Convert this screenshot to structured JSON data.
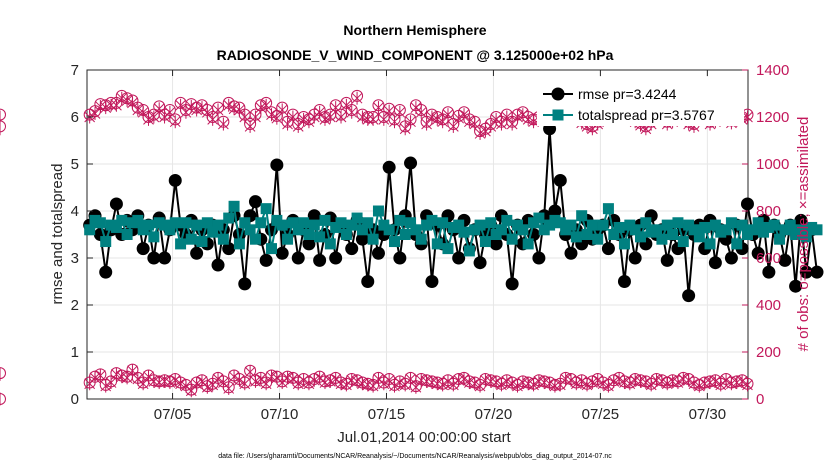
{
  "chart_data": {
    "type": "line",
    "title": "Northern Hemisphere",
    "subtitle": "RADIOSONDE_V_WIND_COMPONENT @ 3.125000e+02 hPa",
    "xlabel": "Jul.01,2014 00:00:00 start",
    "ylabel": "rmse and totalspread",
    "y2label": "# of obs: o=possible; ×=assimilated",
    "footnote": "data file: /Users/gharamti/Documents/NCAR/Reanalysis/~/Documents/NCAR/Reanalysis/webpub/obs_diag_output_2014-07.nc",
    "xlim": [
      1.0,
      31.9
    ],
    "ylim": [
      0,
      7
    ],
    "y2lim": [
      0,
      1400
    ],
    "xticks": [
      {
        "value": 5,
        "label": "07/05"
      },
      {
        "value": 10,
        "label": "07/10"
      },
      {
        "value": 15,
        "label": "07/15"
      },
      {
        "value": 20,
        "label": "07/20"
      },
      {
        "value": 25,
        "label": "07/25"
      },
      {
        "value": 30,
        "label": "07/30"
      }
    ],
    "yticks": [
      "0",
      "1",
      "2",
      "3",
      "4",
      "5",
      "6",
      "7"
    ],
    "y2ticks": [
      "0",
      "200",
      "400",
      "600",
      "800",
      "1000",
      "1200",
      "1400"
    ],
    "grid": true,
    "legend": [
      {
        "label": "rmse pr=3.4244",
        "color": "#000000",
        "marker": "circle"
      },
      {
        "label": "totalspread pr=3.5767",
        "color": "#008080",
        "marker": "square"
      }
    ],
    "colors": {
      "rmse": "#000000",
      "spread": "#008080",
      "obs": "#c2185b"
    },
    "t0": 1.125,
    "dt": 0.25,
    "rmse": [
      3.7,
      3.9,
      3.5,
      2.7,
      3.6,
      4.15,
      3.5,
      3.8,
      3.6,
      3.9,
      3.2,
      3.7,
      3.0,
      3.85,
      3.0,
      3.6,
      4.65,
      3.7,
      3.5,
      3.8,
      3.1,
      3.6,
      3.3,
      3.7,
      2.85,
      3.6,
      3.2,
      3.9,
      3.5,
      2.45,
      3.9,
      4.2,
      3.4,
      2.95,
      3.6,
      4.98,
      3.1,
      3.5,
      3.8,
      3.0,
      3.6,
      3.3,
      3.9,
      2.95,
      3.5,
      3.85,
      3.0,
      3.7,
      3.5,
      3.2,
      3.8,
      3.4,
      2.5,
      3.6,
      3.1,
      3.5,
      4.93,
      3.6,
      3.0,
      3.9,
      5.02,
      3.5,
      3.3,
      3.9,
      2.5,
      3.7,
      3.3,
      3.9,
      3.6,
      3.0,
      3.8,
      3.2,
      3.6,
      2.9,
      3.5,
      3.7,
      3.3,
      3.9,
      3.5,
      2.45,
      3.7,
      3.3,
      3.8,
      3.5,
      3.0,
      3.9,
      5.75,
      4.0,
      4.65,
      3.5,
      3.1,
      3.6,
      3.3,
      3.8,
      3.4,
      3.6,
      3.7,
      3.2,
      3.8,
      3.5,
      2.5,
      3.6,
      3.0,
      3.7,
      3.3,
      3.9,
      3.5,
      3.6,
      2.95,
      3.5,
      3.2,
      3.6,
      2.2,
      3.5,
      3.7,
      3.2,
      3.8,
      2.9,
      3.6,
      3.4,
      3.0,
      3.7,
      3.2,
      4.15,
      3.5,
      3.1,
      3.8,
      2.7,
      3.7,
      3.5,
      2.95,
      3.7,
      2.4,
      3.8,
      2.7,
      3.6,
      2.7
    ],
    "spread": [
      3.6,
      3.8,
      3.75,
      3.35,
      3.7,
      3.65,
      3.8,
      3.5,
      3.75,
      3.8,
      3.6,
      3.7,
      3.45,
      3.75,
      3.7,
      3.6,
      3.75,
      3.3,
      3.75,
      3.4,
      3.7,
      3.35,
      3.75,
      3.55,
      3.7,
      3.4,
      3.85,
      4.1,
      3.3,
      3.75,
      3.6,
      3.4,
      3.75,
      4.05,
      3.2,
      3.8,
      3.7,
      3.4,
      3.75,
      3.6,
      3.75,
      3.5,
      3.7,
      3.45,
      3.8,
      3.3,
      3.65,
      3.75,
      3.5,
      3.7,
      3.85,
      3.6,
      3.75,
      3.4,
      4.0,
      3.7,
      3.6,
      3.35,
      3.8,
      3.5,
      3.75,
      3.6,
      3.4,
      3.7,
      3.8,
      3.3,
      3.75,
      3.2,
      3.65,
      3.7,
      3.55,
      3.15,
      3.6,
      3.7,
      3.35,
      3.75,
      3.5,
      3.6,
      3.8,
      3.4,
      3.7,
      3.6,
      3.3,
      3.75,
      3.85,
      3.6,
      3.7,
      3.8,
      3.75,
      3.6,
      3.7,
      3.45,
      3.9,
      3.5,
      3.7,
      3.4,
      3.7,
      4.05,
      3.5,
      3.65,
      3.3,
      3.7,
      3.6,
      3.45,
      3.75,
      3.55,
      3.6,
      3.4,
      3.7,
      3.5,
      3.75,
      3.35,
      3.7,
      3.6,
      3.45,
      3.65,
      3.3,
      3.7,
      3.55,
      3.6,
      3.75,
      3.3,
      3.7,
      3.5,
      3.6,
      3.75,
      3.55,
      3.65,
      3.7,
      3.4,
      3.6,
      3.7,
      3.5,
      3.6,
      3.45,
      3.65,
      3.6
    ],
    "nobs_possible": [
      1210,
      1225,
      1255,
      1250,
      1260,
      1260,
      1290,
      1280,
      1270,
      1240,
      1230,
      1200,
      1210,
      1245,
      1210,
      1230,
      1190,
      1260,
      1230,
      1255,
      1240,
      1250,
      1230,
      1200,
      1240,
      1180,
      1260,
      1245,
      1240,
      1210,
      1170,
      1210,
      1250,
      1260,
      1220,
      1205,
      1240,
      1180,
      1210,
      1170,
      1200,
      1190,
      1210,
      1230,
      1200,
      1210,
      1250,
      1210,
      1260,
      1230,
      1290,
      1210,
      1200,
      1200,
      1250,
      1200,
      1235,
      1190,
      1230,
      1160,
      1190,
      1250,
      1230,
      1180,
      1210,
      1200,
      1190,
      1220,
      1170,
      1205,
      1220,
      1190,
      1180,
      1140,
      1150,
      1170,
      1200,
      1180,
      1210,
      1180,
      1210,
      1220,
      1200,
      1190,
      1200,
      1215,
      1190,
      1210,
      1220,
      1230,
      1200,
      1210,
      1185,
      1170,
      1160,
      1180,
      1195,
      1210,
      1200,
      1210,
      1220,
      1205,
      1190,
      1175,
      1160,
      1180,
      1200,
      1210,
      1180,
      1190,
      1200,
      1210,
      1180,
      1170,
      1200,
      1210,
      1180,
      1190,
      1220,
      1205,
      1185,
      1195,
      1200,
      1210,
      1180,
      1200,
      1190,
      1210,
      1200,
      1185,
      1195,
      1200,
      1210,
      1185,
      1190,
      1200,
      1165,
      1160,
      1210
    ],
    "nobs_assimilated": [
      1200,
      1215,
      1245,
      1240,
      1250,
      1250,
      1280,
      1270,
      1260,
      1230,
      1220,
      1190,
      1200,
      1235,
      1200,
      1220,
      1180,
      1250,
      1220,
      1245,
      1230,
      1240,
      1220,
      1190,
      1230,
      1170,
      1250,
      1235,
      1230,
      1200,
      1160,
      1200,
      1240,
      1250,
      1210,
      1195,
      1230,
      1170,
      1200,
      1160,
      1190,
      1180,
      1200,
      1220,
      1190,
      1200,
      1240,
      1200,
      1250,
      1220,
      1280,
      1200,
      1190,
      1190,
      1240,
      1190,
      1225,
      1180,
      1220,
      1150,
      1180,
      1240,
      1220,
      1170,
      1200,
      1190,
      1180,
      1210,
      1160,
      1195,
      1210,
      1180,
      1170,
      1130,
      1140,
      1160,
      1190,
      1170,
      1200,
      1170,
      1200,
      1210,
      1190,
      1180,
      1190,
      1205,
      1180,
      1200,
      1210,
      1220,
      1190,
      1200,
      1175,
      1160,
      1150,
      1170,
      1185,
      1200,
      1190,
      1200,
      1210,
      1195,
      1180,
      1165,
      1150,
      1170,
      1190,
      1200,
      1170,
      1180,
      1190,
      1200,
      1170,
      1160,
      1190,
      1200,
      1170,
      1180,
      1210,
      1195,
      1175,
      1185,
      1190,
      1200,
      1170,
      1190,
      1180,
      1200,
      1190,
      1175,
      1185,
      1190,
      1200,
      1175,
      1180,
      1190,
      1155,
      1150,
      1200
    ],
    "nobs_low_possible": [
      70,
      95,
      105,
      60,
      75,
      110,
      100,
      95,
      125,
      90,
      70,
      100,
      80,
      75,
      80,
      75,
      85,
      70,
      60,
      40,
      70,
      80,
      55,
      65,
      90,
      75,
      50,
      100,
      85,
      70,
      120,
      80,
      90,
      70,
      100,
      95,
      75,
      95,
      90,
      70,
      85,
      70,
      85,
      95,
      75,
      80,
      90,
      70,
      65,
      85,
      80,
      70,
      65,
      60,
      90,
      70,
      85,
      60,
      75,
      65,
      90,
      55,
      85,
      80,
      75,
      70,
      65,
      80,
      65,
      85,
      90,
      75,
      70,
      60,
      85,
      80,
      75,
      65,
      80,
      70,
      60,
      75,
      70,
      65,
      80,
      75,
      70,
      60,
      65,
      90,
      85,
      70,
      80,
      65,
      75,
      85,
      70,
      60,
      80,
      90,
      75,
      70,
      85,
      80,
      75,
      65,
      85,
      80,
      70,
      80,
      75,
      90,
      85,
      70,
      60,
      70,
      75,
      80,
      65,
      85,
      70,
      75,
      80,
      65,
      90,
      70,
      80,
      85,
      60,
      80,
      75,
      90,
      85,
      70,
      70,
      75,
      90,
      110,
      0
    ],
    "nobs_low_assimilated": [
      65,
      90,
      100,
      55,
      70,
      105,
      95,
      90,
      120,
      85,
      65,
      95,
      75,
      70,
      75,
      70,
      80,
      65,
      55,
      35,
      65,
      75,
      50,
      60,
      85,
      70,
      45,
      95,
      80,
      65,
      115,
      75,
      85,
      65,
      95,
      90,
      70,
      90,
      85,
      65,
      80,
      65,
      80,
      90,
      70,
      75,
      85,
      65,
      60,
      80,
      75,
      65,
      60,
      55,
      85,
      65,
      80,
      55,
      70,
      60,
      85,
      50,
      80,
      75,
      70,
      65,
      60,
      75,
      60,
      80,
      85,
      70,
      65,
      55,
      80,
      75,
      70,
      60,
      75,
      65,
      55,
      70,
      65,
      60,
      75,
      70,
      65,
      55,
      60,
      85,
      80,
      65,
      75,
      60,
      70,
      80,
      65,
      55,
      75,
      85,
      70,
      65,
      80,
      75,
      70,
      60,
      80,
      75,
      65,
      75,
      70,
      85,
      80,
      65,
      55,
      65,
      70,
      75,
      60,
      80,
      65,
      70,
      75,
      60,
      85,
      65,
      75,
      80,
      55,
      75,
      70,
      85,
      80,
      65,
      65,
      70,
      85,
      105,
      0
    ]
  }
}
